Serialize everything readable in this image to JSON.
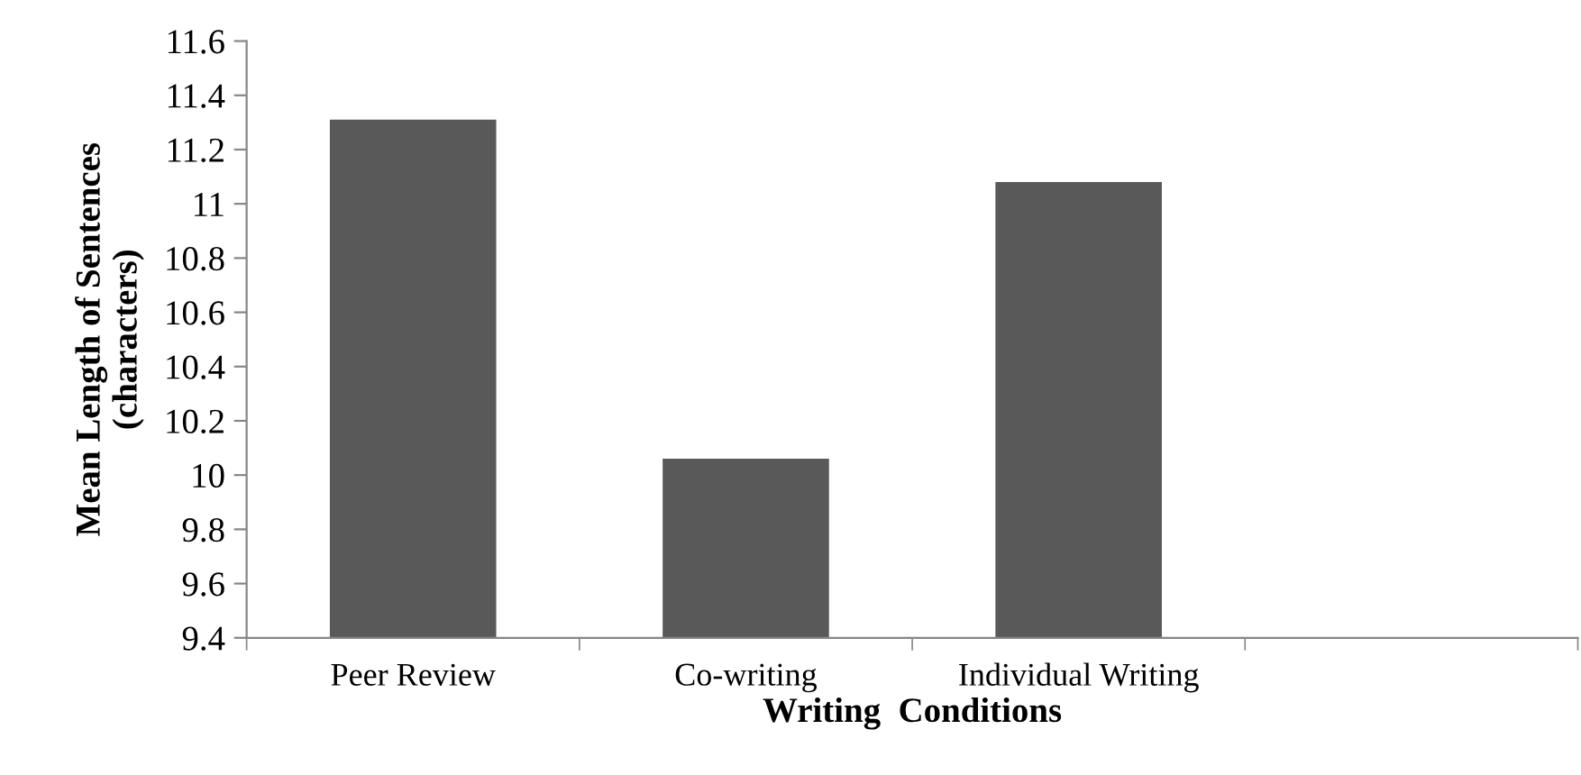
{
  "chart_data": {
    "type": "bar",
    "xlabel": "Writing  Conditions",
    "ylabel": "Mean Length of Sentences\n(characters)",
    "categories": [
      "Peer Review",
      "Co-writing",
      "Individual Writing",
      null
    ],
    "values": [
      11.31,
      10.06,
      11.08,
      null
    ],
    "color": "#595959",
    "ylim": [
      9.4,
      11.6
    ],
    "yticks": [
      9.4,
      9.6,
      9.8,
      10,
      10.2,
      10.4,
      10.6,
      10.8,
      11,
      11.2,
      11.4,
      11.6
    ],
    "grid": false,
    "legend": false
  }
}
